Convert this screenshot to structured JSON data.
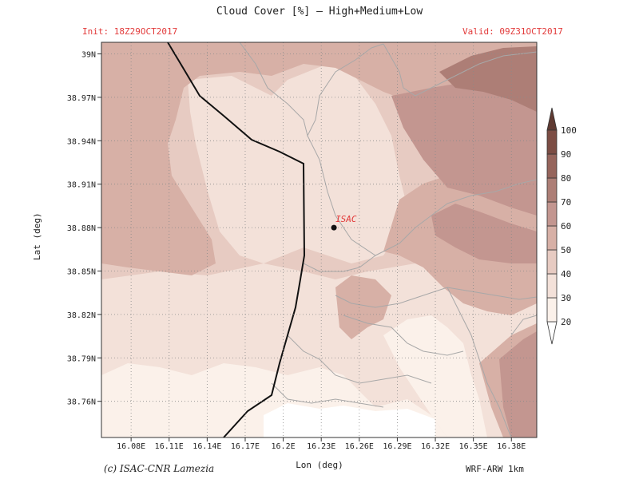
{
  "title": "Cloud Cover [%] — High+Medium+Low",
  "init_label": "Init: 18Z29OCT2017",
  "valid_label": "Valid: 09Z31OCT2017",
  "map": {
    "x_axis_label": "Lon (deg)",
    "y_axis_label": "Lat (deg)",
    "x_ticks": [
      "16.08E",
      "16.11E",
      "16.14E",
      "16.17E",
      "16.2E",
      "16.23E",
      "16.26E",
      "16.29E",
      "16.32E",
      "16.35E",
      "16.38E"
    ],
    "y_ticks": [
      "39N",
      "38.97N",
      "38.94N",
      "38.91N",
      "38.88N",
      "38.85N",
      "38.82N",
      "38.79N",
      "38.76N"
    ],
    "station": {
      "name": "ISAC",
      "lon": 16.24,
      "lat": 38.88,
      "color": "#e23a3a"
    },
    "grid": "dotted"
  },
  "colorbar": {
    "levels": [
      "20",
      "30",
      "40",
      "50",
      "60",
      "70",
      "80",
      "90",
      "100"
    ],
    "colors": [
      "#fbf1ea",
      "#f3e1d9",
      "#e7cbc2",
      "#d7b0a6",
      "#c39690",
      "#ad7e76",
      "#96655c",
      "#7c4d44",
      "#5f3a32"
    ]
  },
  "credit": "(c) ISAC-CNR Lamezia",
  "model_label": "WRF-ARW 1km"
}
